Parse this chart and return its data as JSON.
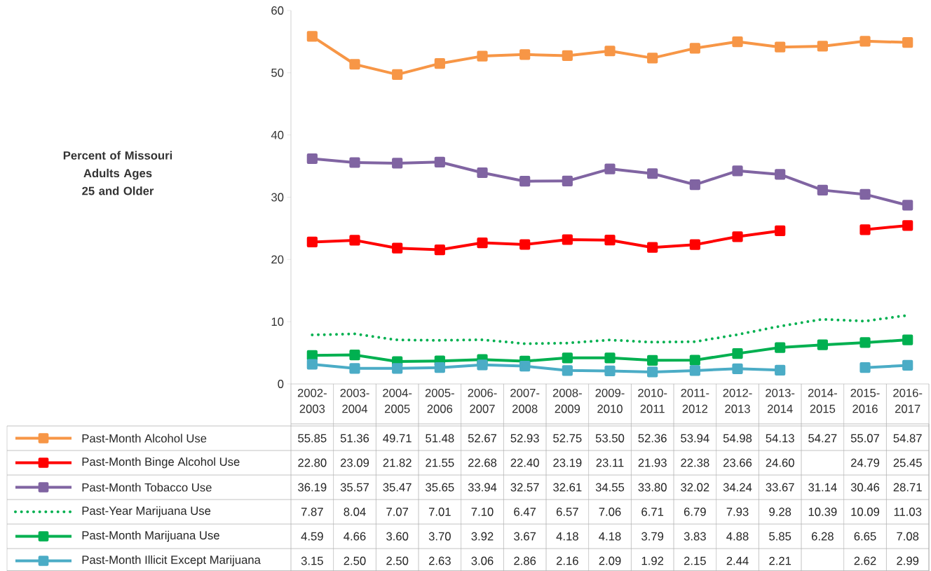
{
  "chart_data": {
    "type": "line",
    "annotations": [
      "Percent of Missouri Adults Ages 25 and Older"
    ],
    "categories": [
      "2002-2003",
      "2003-2004",
      "2004-2005",
      "2005-2006",
      "2006-2007",
      "2007-2008",
      "2008-2009",
      "2009-2010",
      "2010-2011",
      "2011-2012",
      "2012-2013",
      "2013-2014",
      "2014-2015",
      "2015-2016",
      "2016-2017"
    ],
    "ylim": [
      0,
      60
    ],
    "yticks": [
      0,
      10,
      20,
      30,
      40,
      50,
      60
    ],
    "grid": false,
    "legend": "bottom",
    "series": [
      {
        "name": "Past-Month Alcohol Use",
        "color": "#f79646",
        "marker": "square",
        "line_style": "solid",
        "values": [
          55.85,
          51.36,
          49.71,
          51.48,
          52.67,
          52.93,
          52.75,
          53.5,
          52.36,
          53.94,
          54.98,
          54.13,
          54.27,
          55.07,
          54.87
        ],
        "value_labels": [
          "55.85",
          "51.36",
          "49.71",
          "51.48",
          "52.67",
          "52.93",
          "52.75",
          "53.50",
          "52.36",
          "53.94",
          "54.98",
          "54.13",
          "54.27",
          "55.07",
          "54.87"
        ]
      },
      {
        "name": "Past-Month Binge Alcohol Use",
        "color": "#ff0000",
        "marker": "square",
        "line_style": "solid",
        "values": [
          22.8,
          23.09,
          21.82,
          21.55,
          22.68,
          22.4,
          23.19,
          23.11,
          21.93,
          22.38,
          23.66,
          24.6,
          null,
          24.79,
          25.45
        ],
        "value_labels": [
          "22.80",
          "23.09",
          "21.82",
          "21.55",
          "22.68",
          "22.40",
          "23.19",
          "23.11",
          "21.93",
          "22.38",
          "23.66",
          "24.60",
          null,
          "24.79",
          "25.45"
        ]
      },
      {
        "name": "Past-Month Tobacco Use",
        "color": "#8064a2",
        "marker": "square",
        "line_style": "solid",
        "values": [
          36.19,
          35.57,
          35.47,
          35.65,
          33.94,
          32.57,
          32.61,
          34.55,
          33.8,
          32.02,
          34.24,
          33.67,
          31.14,
          30.46,
          28.71
        ],
        "value_labels": [
          "36.19",
          "35.57",
          "35.47",
          "35.65",
          "33.94",
          "32.57",
          "32.61",
          "34.55",
          "33.80",
          "32.02",
          "34.24",
          "33.67",
          "31.14",
          "30.46",
          "28.71"
        ]
      },
      {
        "name": "Past-Year Marijuana Use",
        "color": "#00b050",
        "marker": "none",
        "line_style": "dotted",
        "values": [
          7.87,
          8.04,
          7.07,
          7.01,
          7.1,
          6.47,
          6.57,
          7.06,
          6.71,
          6.79,
          7.93,
          9.28,
          10.39,
          10.09,
          11.03
        ],
        "value_labels": [
          "7.87",
          "8.04",
          "7.07",
          "7.01",
          "7.10",
          "6.47",
          "6.57",
          "7.06",
          "6.71",
          "6.79",
          "7.93",
          "9.28",
          "10.39",
          "10.09",
          "11.03"
        ]
      },
      {
        "name": "Past-Month Marijuana Use",
        "color": "#00b050",
        "marker": "square",
        "line_style": "solid",
        "values": [
          4.59,
          4.66,
          3.6,
          3.7,
          3.92,
          3.67,
          4.18,
          4.18,
          3.79,
          3.83,
          4.88,
          5.85,
          6.28,
          6.65,
          7.08
        ],
        "value_labels": [
          "4.59",
          "4.66",
          "3.60",
          "3.70",
          "3.92",
          "3.67",
          "4.18",
          "4.18",
          "3.79",
          "3.83",
          "4.88",
          "5.85",
          "6.28",
          "6.65",
          "7.08"
        ]
      },
      {
        "name": "Past-Month Illicit Except Marijuana",
        "color": "#4bacc6",
        "marker": "square",
        "line_style": "solid",
        "values": [
          3.15,
          2.5,
          2.5,
          2.63,
          3.06,
          2.86,
          2.16,
          2.09,
          1.92,
          2.15,
          2.44,
          2.21,
          null,
          2.62,
          2.99
        ],
        "value_labels": [
          "3.15",
          "2.50",
          "2.50",
          "2.63",
          "3.06",
          "2.86",
          "2.16",
          "2.09",
          "1.92",
          "2.15",
          "2.44",
          "2.21",
          null,
          "2.62",
          "2.99"
        ]
      }
    ]
  }
}
